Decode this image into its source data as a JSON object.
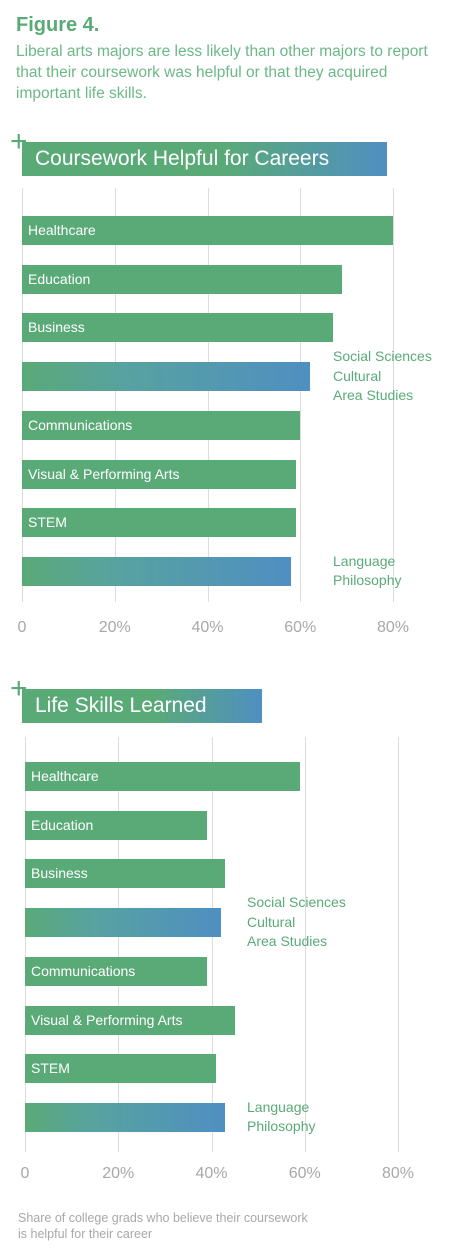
{
  "figure": {
    "label": "Figure 4.",
    "subtitle": "Liberal arts majors are less likely than other majors to report that their coursework was helpful or that they acquired important life skills."
  },
  "footnote": "Share of college grads who believe their coursework is helpful for their career",
  "colors": {
    "green": "#5aaa78",
    "blue": "#4f8fc2",
    "grid": "#dcdcdc",
    "tick": "#a8a8a8"
  },
  "chart_data": [
    {
      "type": "bar",
      "orientation": "horizontal",
      "title": "Coursework Helpful for Careers",
      "xlim": [
        0,
        80
      ],
      "xticks": [
        "0",
        "20%",
        "40%",
        "60%",
        "80%"
      ],
      "grid": true,
      "categories": [
        "Healthcare",
        "Education",
        "Business",
        "Social Sciences\nCultural\nArea Studies",
        "Communications",
        "Visual & Performing Arts",
        "STEM",
        "Language\nPhilosophy"
      ],
      "values": [
        80,
        69,
        67,
        62,
        60,
        59,
        59,
        58
      ],
      "highlighted": [
        false,
        false,
        false,
        true,
        false,
        false,
        false,
        true
      ]
    },
    {
      "type": "bar",
      "orientation": "horizontal",
      "title": "Life Skills Learned",
      "xlim": [
        0,
        80
      ],
      "xticks": [
        "0",
        "20%",
        "40%",
        "60%",
        "80%"
      ],
      "grid": true,
      "categories": [
        "Healthcare",
        "Education",
        "Business",
        "Social Sciences\nCultural\nArea Studies",
        "Communications",
        "Visual & Performing Arts",
        "STEM",
        "Language\nPhilosophy"
      ],
      "values": [
        59,
        39,
        43,
        42,
        39,
        45,
        41,
        43
      ],
      "highlighted": [
        false,
        false,
        false,
        true,
        false,
        false,
        false,
        true
      ]
    }
  ]
}
